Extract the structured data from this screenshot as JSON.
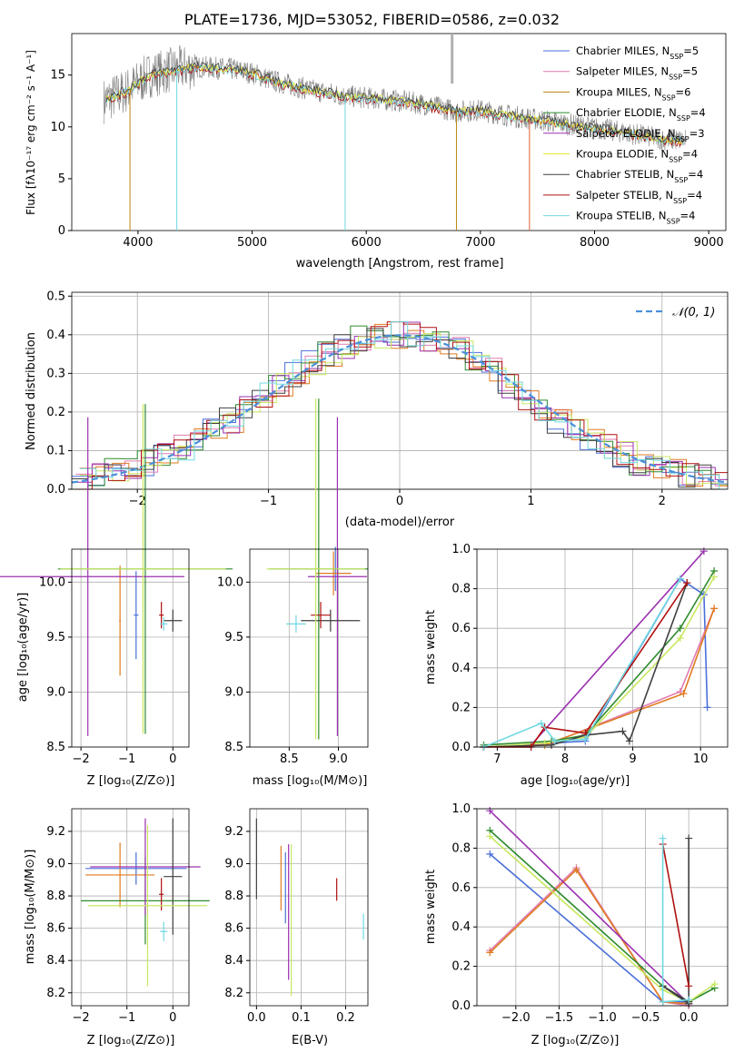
{
  "figure": {
    "title": "PLATE=1736, MJD=53052, FIBERID=0586, z=0.032"
  },
  "panels": {
    "spectrum": {
      "xlabel": "wavelength [Angstrom, rest frame]",
      "ylabel": "Flux [fλ10⁻¹⁷ erg cm⁻² s⁻¹ A⁻¹]",
      "xticks": [
        "4000",
        "5000",
        "6000",
        "7000",
        "8000",
        "9000"
      ],
      "yticks": [
        "0",
        "5",
        "10",
        "15"
      ],
      "legend": [
        {
          "label": "Chabrier MILES, N_SSP=5",
          "color": "#4a6fd8"
        },
        {
          "label": "Salpeter MILES, N_SSP=5",
          "color": "#e07db0"
        },
        {
          "label": "Kroupa MILES, N_SSP=6",
          "color": "#b8860b"
        },
        {
          "label": "Chabrier ELODIE, N_SSP=4",
          "color": "#2e8b2e"
        },
        {
          "label": "Salpeter ELODIE, N_SSP=3",
          "color": "#9b30b0"
        },
        {
          "label": "Kroupa ELODIE, N_SSP=4",
          "color": "#e8e830"
        },
        {
          "label": "Chabrier STELIB, N_SSP=4",
          "color": "#404040"
        },
        {
          "label": "Salpeter STELIB, N_SSP=4",
          "color": "#b01010"
        },
        {
          "label": "Kroupa STELIB, N_SSP=4",
          "color": "#70d8e0"
        }
      ]
    },
    "residuals": {
      "xlabel": "(data-model)/error",
      "ylabel": "Normed distribution",
      "xticks": [
        "−2",
        "−1",
        "0",
        "1",
        "2"
      ],
      "yticks": [
        "0.0",
        "0.1",
        "0.2",
        "0.3",
        "0.4",
        "0.5"
      ],
      "legend_label": "𝒩(0, 1)"
    },
    "age_z": {
      "xlabel": "Z [log₁₀(Z/Z⊙)]",
      "ylabel": "age  [log₁₀(age/yr)]",
      "xticks": [
        "−2",
        "−1",
        "0"
      ],
      "yticks": [
        "8.5",
        "9.0",
        "9.5",
        "10.0"
      ]
    },
    "age_mass": {
      "xlabel": "mass [log₁₀(M/M⊙)]",
      "xticks": [
        "8.5",
        "9.0"
      ],
      "yticks": [
        "8.5",
        "9.0",
        "9.5",
        "10.0"
      ]
    },
    "mw_age": {
      "xlabel": "age  [log₁₀(age/yr)]",
      "ylabel": "mass weight",
      "xticks": [
        "7",
        "8",
        "9",
        "10"
      ],
      "yticks": [
        "0.0",
        "0.2",
        "0.4",
        "0.6",
        "0.8",
        "1.0"
      ]
    },
    "mass_z": {
      "xlabel": "Z [log₁₀(Z/Z⊙)]",
      "ylabel": "mass [log₁₀(M/M⊙)]",
      "xticks": [
        "−2",
        "−1",
        "0"
      ],
      "yticks": [
        "8.2",
        "8.4",
        "8.6",
        "8.8",
        "9.0",
        "9.2"
      ]
    },
    "mass_ebv": {
      "xlabel": "E(B-V)",
      "xticks": [
        "0.0",
        "0.1",
        "0.2"
      ],
      "yticks": [
        "8.2",
        "8.4",
        "8.6",
        "8.8",
        "9.0",
        "9.2"
      ]
    },
    "mw_z": {
      "xlabel": "Z [log₁₀(Z/Z⊙)]",
      "ylabel": "mass weight",
      "xticks": [
        "−2.0",
        "−1.5",
        "−1.0",
        "−0.5",
        "0.0"
      ],
      "yticks": [
        "0.0",
        "0.2",
        "0.4",
        "0.6",
        "0.8",
        "1.0"
      ]
    }
  },
  "chart_data": [
    {
      "type": "line",
      "title": "PLATE=1736, MJD=53052, FIBERID=0586, z=0.032",
      "xlabel": "wavelength [Angstrom, rest frame]",
      "ylabel": "Flux [fλ10^-17 erg cm^-2 s^-1 A^-1]",
      "xlim": [
        3420,
        9150
      ],
      "ylim": [
        0,
        19
      ],
      "spectrum_shape": {
        "x": [
          3700,
          3900,
          4100,
          4300,
          4500,
          4800,
          5000,
          5200,
          5500,
          5800,
          6000,
          6300,
          6500,
          6800,
          7000,
          7300,
          7500,
          7800,
          8000,
          8300,
          8600,
          8800
        ],
        "y": [
          12.5,
          13.5,
          15.0,
          15.5,
          15.8,
          15.6,
          15.2,
          14.4,
          13.6,
          13.0,
          12.8,
          12.5,
          12.2,
          11.5,
          11.6,
          11.0,
          10.7,
          10.2,
          9.9,
          9.4,
          8.8,
          8.7
        ]
      },
      "legend": "upper right"
    },
    {
      "type": "bar",
      "xlabel": "(data-model)/error",
      "ylabel": "Normed distribution",
      "xlim": [
        -2.5,
        2.5
      ],
      "ylim": [
        0,
        0.51
      ],
      "bin_width": 0.1,
      "bins_center_mean": [
        0.02,
        0.04,
        0.05,
        0.06,
        0.07,
        0.09,
        0.11,
        0.13,
        0.15,
        0.18,
        0.21,
        0.24,
        0.27,
        0.3,
        0.33,
        0.35,
        0.37,
        0.39,
        0.4,
        0.4,
        0.4,
        0.39,
        0.38,
        0.36,
        0.33,
        0.31,
        0.27,
        0.24,
        0.21,
        0.18,
        0.15,
        0.13,
        0.11,
        0.09,
        0.07,
        0.06,
        0.05,
        0.04,
        0.03,
        0.02
      ],
      "series": [
        {
          "name": "𝒩(0, 1)",
          "type": "line",
          "style": "dashed",
          "color": "#4a90d9"
        }
      ]
    },
    {
      "type": "scatter",
      "xlabel": "Z [log10(Z/Z⊙)]",
      "ylabel": "age  [log10(age/yr)]",
      "xlim": [
        -2.2,
        0.35
      ],
      "ylim": [
        8.5,
        10.3
      ],
      "points": [
        {
          "color": "#4a6fd8",
          "x": -0.8,
          "y": 9.7,
          "xerr": 0.05,
          "yerr": 0.4
        },
        {
          "color": "#e07b20",
          "x": -1.15,
          "y": 9.65,
          "xerr": 0.02,
          "yerr": 0.5
        },
        {
          "color": "#2e8b2e",
          "x": -0.6,
          "y": 10.12,
          "xerr": 1.9,
          "yerr": 1.5
        },
        {
          "color": "#9b30b0",
          "x": -1.85,
          "y": 10.05,
          "xerr": 2.1,
          "yerr": 1.45
        },
        {
          "color": "#404040",
          "x": 0.0,
          "y": 9.65,
          "xerr": 0.2,
          "yerr": 0.1
        },
        {
          "color": "#b01010",
          "x": -0.25,
          "y": 9.7,
          "xerr": 0.05,
          "yerr": 0.12
        },
        {
          "color": "#70d8e0",
          "x": -0.2,
          "y": 9.62,
          "xerr": 0.08,
          "yerr": 0.06
        },
        {
          "color": "#c8e860",
          "x": -0.65,
          "y": 10.12,
          "xerr": 1.8,
          "yerr": 1.5
        }
      ]
    },
    {
      "type": "scatter",
      "xlabel": "mass [log10(M/M⊙)]",
      "xlim": [
        8.1,
        9.3
      ],
      "ylim": [
        8.5,
        10.3
      ],
      "points": [
        {
          "color": "#4a6fd8",
          "x": 8.97,
          "y": 10.12,
          "xerr": 0.02,
          "yerr": 0.2
        },
        {
          "color": "#e07b20",
          "x": 8.95,
          "y": 10.08,
          "xerr": 0.18,
          "yerr": 0.2
        },
        {
          "color": "#2e8b2e",
          "x": 8.8,
          "y": 10.12,
          "xerr": 0.5,
          "yerr": 1.55
        },
        {
          "color": "#9b30b0",
          "x": 8.99,
          "y": 10.05,
          "xerr": 0.3,
          "yerr": 1.45
        },
        {
          "color": "#404040",
          "x": 8.92,
          "y": 9.65,
          "xerr": 0.3,
          "yerr": 0.1
        },
        {
          "color": "#b01010",
          "x": 8.82,
          "y": 9.7,
          "xerr": 0.1,
          "yerr": 0.12
        },
        {
          "color": "#70d8e0",
          "x": 8.57,
          "y": 9.62,
          "xerr": 0.1,
          "yerr": 0.08
        },
        {
          "color": "#c8e860",
          "x": 8.77,
          "y": 10.12,
          "xerr": 0.5,
          "yerr": 1.55
        }
      ]
    },
    {
      "type": "line",
      "xlabel": "age  [log10(age/yr)]",
      "ylabel": "mass weight",
      "xlim": [
        6.7,
        10.4
      ],
      "ylim": [
        0,
        1
      ],
      "series": [
        {
          "color": "#4a6fd8",
          "x": [
            6.8,
            8.3,
            9.7,
            10.05,
            10.1
          ],
          "y": [
            0.0,
            0.03,
            0.85,
            0.77,
            0.2
          ]
        },
        {
          "color": "#e07db0",
          "x": [
            6.8,
            7.8,
            9.7,
            10.2
          ],
          "y": [
            0.0,
            0.02,
            0.28,
            0.7
          ]
        },
        {
          "color": "#e07b20",
          "x": [
            6.8,
            7.7,
            9.75,
            10.2
          ],
          "y": [
            0.0,
            0.01,
            0.27,
            0.7
          ]
        },
        {
          "color": "#2e8b2e",
          "x": [
            6.8,
            7.8,
            8.3,
            9.7,
            10.2
          ],
          "y": [
            0.01,
            0.03,
            0.06,
            0.6,
            0.89
          ]
        },
        {
          "color": "#9b30b0",
          "x": [
            6.8,
            7.5,
            10.05
          ],
          "y": [
            0.0,
            0.01,
            0.99
          ]
        },
        {
          "color": "#c8e860",
          "x": [
            6.8,
            7.7,
            8.3,
            9.7,
            10.2
          ],
          "y": [
            0.0,
            0.02,
            0.05,
            0.55,
            0.86
          ]
        },
        {
          "color": "#404040",
          "x": [
            6.8,
            7.8,
            8.3,
            8.85,
            8.95,
            9.8
          ],
          "y": [
            0.0,
            0.01,
            0.06,
            0.08,
            0.03,
            0.83
          ]
        },
        {
          "color": "#b01010",
          "x": [
            6.8,
            7.5,
            7.7,
            8.3,
            9.8
          ],
          "y": [
            0.0,
            0.0,
            0.1,
            0.07,
            0.83
          ]
        },
        {
          "color": "#70d8e0",
          "x": [
            6.8,
            7.65,
            7.85,
            8.3,
            9.7
          ],
          "y": [
            0.0,
            0.12,
            0.03,
            0.04,
            0.85
          ]
        }
      ]
    },
    {
      "type": "scatter",
      "xlabel": "Z [log10(Z/Z⊙)]",
      "ylabel": "mass [log10(M/M⊙)]",
      "xlim": [
        -2.2,
        0.35
      ],
      "ylim": [
        8.12,
        9.34
      ],
      "points": [
        {
          "color": "#4a6fd8",
          "x": -0.8,
          "y": 8.97,
          "xerr": 1.1,
          "yerr": 0.1
        },
        {
          "color": "#e07b20",
          "x": -1.15,
          "y": 8.93,
          "xerr": 0.75,
          "yerr": 0.2
        },
        {
          "color": "#2e8b2e",
          "x": -0.6,
          "y": 8.77,
          "xerr": 1.4,
          "yerr": 0.27
        },
        {
          "color": "#9b30b0",
          "x": -0.6,
          "y": 8.98,
          "xerr": 1.2,
          "yerr": 0.3
        },
        {
          "color": "#404040",
          "x": 0.0,
          "y": 8.92,
          "xerr": 0.2,
          "yerr": 0.36
        },
        {
          "color": "#b01010",
          "x": -0.25,
          "y": 8.81,
          "xerr": 0.05,
          "yerr": 0.1
        },
        {
          "color": "#70d8e0",
          "x": -0.2,
          "y": 8.58,
          "xerr": 0.08,
          "yerr": 0.06
        },
        {
          "color": "#c8e860",
          "x": -0.55,
          "y": 8.74,
          "xerr": 1.3,
          "yerr": 0.5
        }
      ]
    },
    {
      "type": "scatter",
      "xlabel": "E(B-V)",
      "xlim": [
        -0.015,
        0.25
      ],
      "ylim": [
        8.12,
        9.34
      ],
      "points": [
        {
          "color": "#404040",
          "x": 0.0,
          "y": 9.03,
          "yerr": 0.25
        },
        {
          "color": "#e07b20",
          "x": 0.055,
          "y": 8.91,
          "yerr": 0.2
        },
        {
          "color": "#4a6fd8",
          "x": 0.065,
          "y": 8.85,
          "yerr": 0.22
        },
        {
          "color": "#9b30b0",
          "x": 0.072,
          "y": 8.7,
          "yerr": 0.42
        },
        {
          "color": "#c8e860",
          "x": 0.078,
          "y": 8.65,
          "yerr": 0.47
        },
        {
          "color": "#b01010",
          "x": 0.18,
          "y": 8.84,
          "yerr": 0.07
        },
        {
          "color": "#70d8e0",
          "x": 0.24,
          "y": 8.61,
          "yerr": 0.08
        }
      ]
    },
    {
      "type": "line",
      "xlabel": "Z [log10(Z/Z⊙)]",
      "ylabel": "mass weight",
      "xlim": [
        -2.45,
        0.45
      ],
      "ylim": [
        0,
        1
      ],
      "series": [
        {
          "color": "#4a6fd8",
          "x": [
            -2.3,
            -0.3,
            0.0
          ],
          "y": [
            0.77,
            0.02,
            0.02
          ]
        },
        {
          "color": "#e07db0",
          "x": [
            -2.3,
            -1.3,
            -0.3,
            0.0
          ],
          "y": [
            0.28,
            0.7,
            0.02,
            0.0
          ]
        },
        {
          "color": "#e07b20",
          "x": [
            -2.3,
            -1.3,
            -0.3,
            0.0
          ],
          "y": [
            0.27,
            0.69,
            0.02,
            0.01
          ]
        },
        {
          "color": "#2e8b2e",
          "x": [
            -2.3,
            -0.3,
            0.0,
            0.3
          ],
          "y": [
            0.89,
            0.1,
            0.02,
            0.09
          ]
        },
        {
          "color": "#9b30b0",
          "x": [
            -2.3,
            0.0
          ],
          "y": [
            0.99,
            0.01
          ]
        },
        {
          "color": "#c8e860",
          "x": [
            -2.3,
            -0.3,
            0.0,
            0.3
          ],
          "y": [
            0.86,
            0.08,
            0.02,
            0.11
          ]
        },
        {
          "color": "#404040",
          "x": [
            0.0,
            0.0,
            -0.3,
            0.0
          ],
          "y": [
            0.85,
            0.01,
            0.1,
            0.02
          ]
        },
        {
          "color": "#b01010",
          "x": [
            -0.3,
            0.0
          ],
          "y": [
            0.82,
            0.1
          ]
        },
        {
          "color": "#70d8e0",
          "x": [
            -0.3,
            -0.3,
            0.0
          ],
          "y": [
            0.85,
            0.02,
            0.03
          ]
        }
      ]
    }
  ]
}
